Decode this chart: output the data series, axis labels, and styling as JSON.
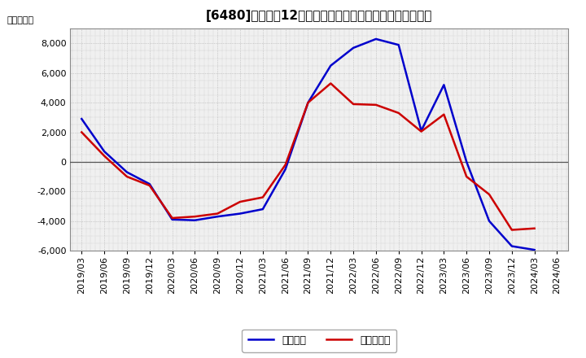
{
  "title_text": "[6480]　利益の12か月移動合計の対前年同期増減額の推移",
  "ylabel": "（百万円）",
  "x_labels": [
    "2019/03",
    "2019/06",
    "2019/09",
    "2019/12",
    "2020/03",
    "2020/06",
    "2020/09",
    "2020/12",
    "2021/03",
    "2021/06",
    "2021/09",
    "2021/12",
    "2022/03",
    "2022/06",
    "2022/09",
    "2022/12",
    "2023/03",
    "2023/06",
    "2023/09",
    "2023/12",
    "2024/03",
    "2024/06"
  ],
  "operating_profit": [
    2900,
    700,
    -700,
    -1500,
    -3900,
    -3950,
    -3700,
    -3500,
    -3200,
    -500,
    4000,
    6500,
    7700,
    8300,
    7900,
    2100,
    5200,
    0,
    -4000,
    -5700,
    -5950,
    null
  ],
  "net_profit": [
    2000,
    400,
    -1000,
    -1600,
    -3800,
    -3700,
    -3500,
    -2700,
    -2400,
    -200,
    4000,
    5300,
    3900,
    3850,
    3300,
    2050,
    3200,
    -1000,
    -2200,
    -4600,
    -4500,
    null
  ],
  "blue_color": "#0000cc",
  "red_color": "#cc0000",
  "bg_color": "#ffffff",
  "plot_bg_color": "#f0f0f0",
  "grid_color": "#aaaaaa",
  "ylim": [
    -6000,
    9000
  ],
  "yticks": [
    -6000,
    -4000,
    -2000,
    0,
    2000,
    4000,
    6000,
    8000
  ],
  "legend_labels": [
    "経常利益",
    "当期純利益"
  ],
  "title_fontsize": 11,
  "axis_fontsize": 8
}
